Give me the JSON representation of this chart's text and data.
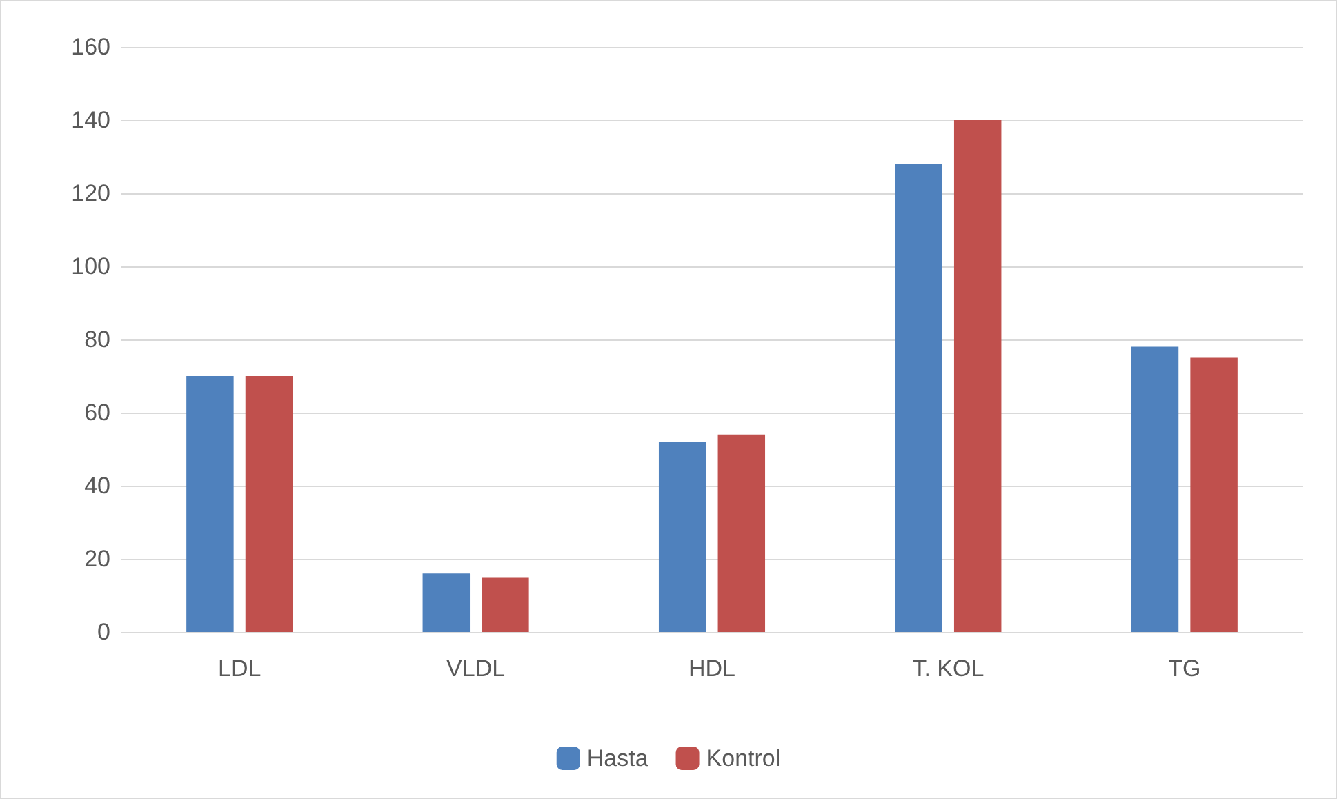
{
  "chart_data": {
    "type": "bar",
    "categories": [
      "LDL",
      "VLDL",
      "HDL",
      "T. KOL",
      "TG"
    ],
    "series": [
      {
        "name": "Hasta",
        "color": "#4f81bd",
        "values": [
          70,
          16,
          52,
          128,
          78
        ]
      },
      {
        "name": "Kontrol",
        "color": "#c0504d",
        "values": [
          70,
          15,
          54,
          140,
          75
        ]
      }
    ],
    "ylim": [
      0,
      160
    ],
    "yticks": [
      0,
      20,
      40,
      60,
      80,
      100,
      120,
      140,
      160
    ],
    "grid": "y",
    "legend": "bottom"
  }
}
